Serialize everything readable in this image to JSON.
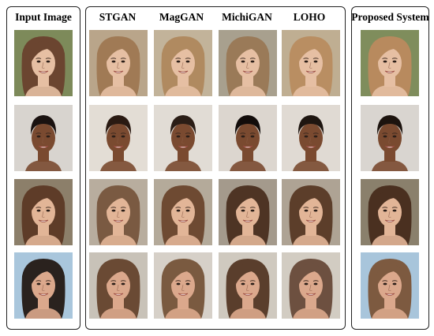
{
  "figure": {
    "columns": [
      {
        "id": "input",
        "title": "Input Image"
      },
      {
        "id": "stgan",
        "title": "STGAN"
      },
      {
        "id": "maggan",
        "title": "MagGAN"
      },
      {
        "id": "michigan",
        "title": "MichiGAN"
      },
      {
        "id": "loho",
        "title": "LOHO"
      },
      {
        "id": "proposed",
        "title": "Proposed System"
      }
    ],
    "rows": [
      {
        "id": "row-1",
        "skin": "#e6bfa3",
        "hair": "#6b4530",
        "bg": "#7d8a5a"
      },
      {
        "id": "row-2",
        "skin": "#7a4a30",
        "hair": "#1a1210",
        "bg": "#d8d4cf"
      },
      {
        "id": "row-3",
        "skin": "#e2b597",
        "hair": "#5e3c28",
        "bg": "#8c7f6a"
      },
      {
        "id": "row-4",
        "skin": "#dba88c",
        "hair": "#2a221e",
        "bg": "#a9c6dc"
      }
    ],
    "hair_variants": {
      "stgan": [
        "#a07a55",
        "#2a1a12",
        "#7a5a42",
        "#6a4a34"
      ],
      "maggan": [
        "#b08a60",
        "#2a1d16",
        "#6e4a32",
        "#7a5a40"
      ],
      "michigan": [
        "#9a7a58",
        "#120c0a",
        "#4e3424",
        "#5a3e2c"
      ],
      "loho": [
        "#b98e62",
        "#1e1510",
        "#5c3e2a",
        "#6d5040"
      ],
      "proposed": [
        "#b88a5e",
        "#1c130e",
        "#4a3020",
        "#7d5a40"
      ]
    },
    "bg_variants": {
      "stgan": [
        "#b9a58a",
        "#e3ddd5",
        "#b8ad9e",
        "#c8c2b8"
      ],
      "maggan": [
        "#c2b39a",
        "#e1dcd5",
        "#b4aa9a",
        "#d6d0c8"
      ],
      "michigan": [
        "#a8a08e",
        "#dcd6cf",
        "#a49a8c",
        "#cfc9bf"
      ],
      "loho": [
        "#bfae92",
        "#e0dad3",
        "#aea394",
        "#d2ccc2"
      ],
      "proposed": [
        "#7f8d5c",
        "#d9d5d0",
        "#8a806c",
        "#a8c5db"
      ]
    }
  }
}
